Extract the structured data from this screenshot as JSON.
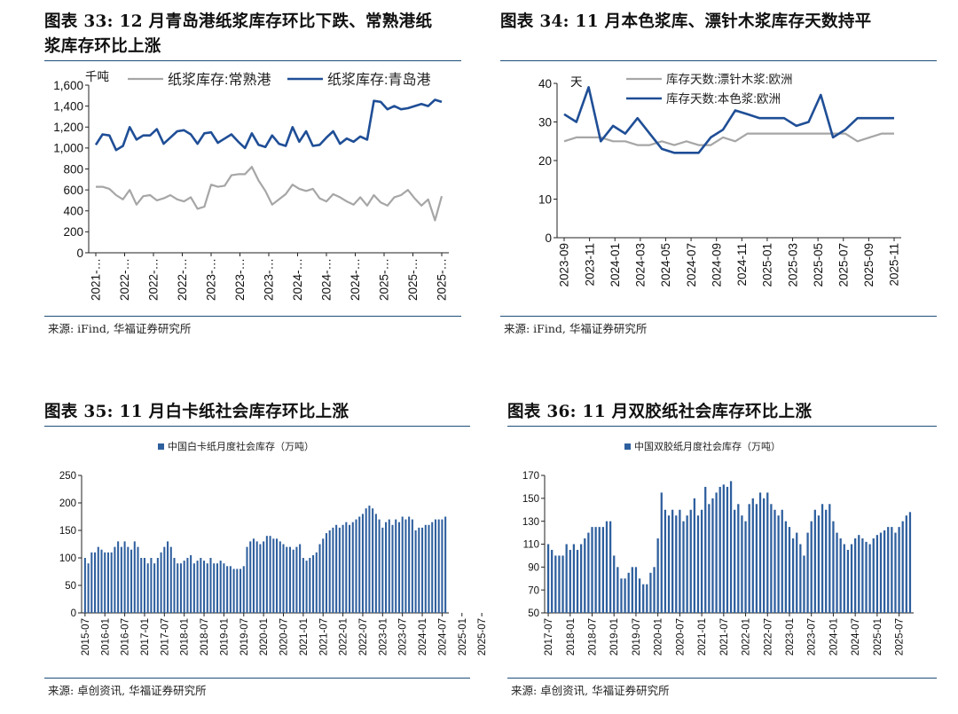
{
  "panels": [
    {
      "title": "图表 33:  12 月青岛港纸浆库存环比下跌、常熟港纸",
      "title2": "浆库存环比上涨",
      "source": "来源:  iFind,  华福证券研究所"
    },
    {
      "title": "图表 34:  11 月本色浆库、漂针木浆库存天数持平",
      "source": "来源:  iFind,  华福证券研究所"
    },
    {
      "title": "图表 35:  11 月白卡纸社会库存环比上涨",
      "source": "来源:  卓创资讯,  华福证券研究所"
    },
    {
      "title": "图表 36:  11 月双胶纸社会库存环比上涨",
      "source": "来源:  卓创资讯,  华福证券研究所"
    }
  ],
  "chart_data": [
    {
      "type": "line",
      "unit_label": "千吨",
      "ylim": [
        0,
        1600
      ],
      "yticks": [
        "0",
        "200",
        "400",
        "600",
        "800",
        "1,000",
        "1,200",
        "1,400",
        "1,600"
      ],
      "xtick_labels": [
        "2021-…",
        "2022-…",
        "2022-…",
        "2022-…",
        "2023-…",
        "2023-…",
        "2023-…",
        "2024-…",
        "2024-…",
        "2024-…",
        "2025-…",
        "2025-…",
        "2025-…"
      ],
      "legend_position": "top",
      "series": [
        {
          "name": "纸浆库存:常熟港",
          "color": "#a6a6a6",
          "values": [
            630,
            630,
            610,
            550,
            510,
            600,
            460,
            540,
            550,
            500,
            520,
            550,
            510,
            490,
            530,
            420,
            440,
            650,
            630,
            640,
            740,
            750,
            750,
            820,
            690,
            590,
            460,
            510,
            560,
            650,
            610,
            590,
            610,
            520,
            490,
            560,
            530,
            490,
            460,
            530,
            450,
            550,
            480,
            450,
            530,
            550,
            600,
            520,
            450,
            510,
            310,
            540
          ]
        },
        {
          "name": "纸浆库存:青岛港",
          "color": "#1f4e96",
          "values": [
            1030,
            1130,
            1120,
            980,
            1020,
            1200,
            1080,
            1120,
            1120,
            1180,
            1040,
            1100,
            1160,
            1170,
            1130,
            1040,
            1140,
            1150,
            1050,
            1090,
            1130,
            1060,
            1000,
            1140,
            1030,
            1010,
            1120,
            1040,
            1020,
            1200,
            1060,
            1160,
            1020,
            1030,
            1100,
            1160,
            1040,
            1090,
            1060,
            1110,
            1080,
            1450,
            1440,
            1370,
            1400,
            1370,
            1380,
            1400,
            1420,
            1400,
            1460,
            1440
          ]
        }
      ]
    },
    {
      "type": "line",
      "unit_label": "天",
      "ylim": [
        0,
        40
      ],
      "yticks": [
        "0",
        "10",
        "20",
        "30",
        "40"
      ],
      "xtick_labels": [
        "2023-09",
        "2023-11",
        "2024-01",
        "2024-03",
        "2024-05",
        "2024-07",
        "2024-09",
        "2024-11",
        "2025-01",
        "2025-03",
        "2025-05",
        "2025-07",
        "2025-09",
        "2025-11"
      ],
      "legend_position": "top",
      "series": [
        {
          "name": "库存天数:漂针木浆:欧洲",
          "color": "#a6a6a6",
          "values": [
            25,
            26,
            26,
            26,
            25,
            25,
            24,
            24,
            25,
            24,
            25,
            24,
            24,
            26,
            25,
            27,
            27,
            27,
            27,
            27,
            27,
            27,
            27,
            27,
            25,
            26,
            27,
            27
          ]
        },
        {
          "name": "库存天数:本色浆:欧洲",
          "color": "#1f4e96",
          "values": [
            32,
            30,
            39,
            25,
            29,
            27,
            31,
            27,
            23,
            22,
            22,
            22,
            26,
            28,
            33,
            32,
            31,
            31,
            31,
            29,
            30,
            37,
            26,
            28,
            31,
            31,
            31,
            31
          ]
        }
      ]
    },
    {
      "type": "bar",
      "legend": "中国白卡纸月度社会库存（万吨）",
      "color": "#2e5f9e",
      "ylim": [
        0,
        250
      ],
      "yticks": [
        "0",
        "50",
        "100",
        "150",
        "200",
        "250"
      ],
      "xtick_labels": [
        "2015-07",
        "2016-01",
        "2016-07",
        "2017-01",
        "2017-07",
        "2018-01",
        "2018-07",
        "2019-01",
        "2019-07",
        "2020-01",
        "2020-07",
        "2021-01",
        "2021-07",
        "2022-01",
        "2022-07",
        "2023-01",
        "2023-07",
        "2024-01",
        "2024-07",
        "2025-01",
        "2025-07"
      ],
      "values": [
        100,
        90,
        110,
        110,
        120,
        115,
        110,
        110,
        110,
        120,
        130,
        120,
        130,
        120,
        115,
        130,
        120,
        100,
        100,
        90,
        100,
        90,
        100,
        110,
        120,
        130,
        120,
        100,
        90,
        90,
        95,
        100,
        105,
        90,
        95,
        100,
        95,
        90,
        100,
        90,
        90,
        95,
        90,
        85,
        85,
        80,
        80,
        80,
        85,
        120,
        130,
        135,
        130,
        125,
        130,
        140,
        140,
        135,
        135,
        130,
        125,
        120,
        120,
        115,
        120,
        125,
        100,
        95,
        100,
        105,
        110,
        125,
        135,
        145,
        150,
        155,
        160,
        155,
        160,
        165,
        160,
        165,
        170,
        175,
        180,
        190,
        195,
        190,
        180,
        170,
        155,
        165,
        170,
        160,
        170,
        165,
        175,
        170,
        175,
        170,
        150,
        155,
        155,
        160,
        160,
        165,
        170,
        170,
        170,
        175
      ]
    },
    {
      "type": "bar",
      "legend": "中国双胶纸月度社会库存（万吨）",
      "color": "#2e5f9e",
      "ylim": [
        50,
        170
      ],
      "yticks": [
        "50",
        "70",
        "90",
        "110",
        "130",
        "150",
        "170"
      ],
      "xtick_labels": [
        "2017-07",
        "2018-01",
        "2018-07",
        "2019-01",
        "2019-07",
        "2020-01",
        "2020-07",
        "2021-01",
        "2021-07",
        "2022-01",
        "2022-07",
        "2023-01",
        "2023-07",
        "2024-01",
        "2024-07",
        "2025-01",
        "2025-07"
      ],
      "values": [
        110,
        105,
        100,
        100,
        100,
        110,
        105,
        110,
        105,
        110,
        115,
        120,
        125,
        125,
        125,
        125,
        130,
        130,
        100,
        90,
        80,
        80,
        85,
        90,
        90,
        80,
        75,
        75,
        85,
        90,
        115,
        155,
        140,
        135,
        140,
        135,
        140,
        130,
        135,
        140,
        150,
        135,
        140,
        160,
        145,
        150,
        155,
        160,
        162,
        160,
        165,
        140,
        145,
        135,
        130,
        145,
        150,
        145,
        155,
        150,
        155,
        145,
        140,
        135,
        140,
        130,
        125,
        115,
        120,
        110,
        100,
        120,
        130,
        140,
        135,
        145,
        140,
        145,
        130,
        120,
        115,
        110,
        105,
        110,
        115,
        118,
        115,
        112,
        110,
        115,
        118,
        120,
        122,
        125,
        125,
        120,
        125,
        130,
        135,
        138
      ]
    }
  ]
}
